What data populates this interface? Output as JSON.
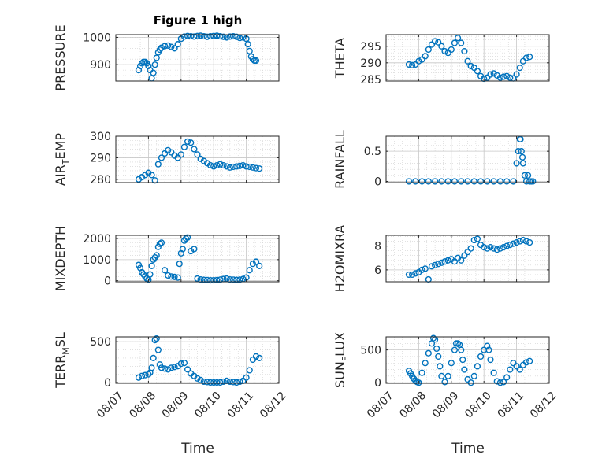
{
  "figure": {
    "title": "Figure 1 high",
    "x_tick_labels": [
      "08/07",
      "08/08",
      "08/09",
      "08/10",
      "08/11",
      "08/12"
    ],
    "xlabel": "Time",
    "marker_color": "#0072bd"
  },
  "chart_data": [
    {
      "type": "scatter",
      "ylabel": "PRESSURE",
      "ylabel_sub": "",
      "ylabel_pre": "PRESSURE",
      "ylabel_post": "",
      "ylim": [
        840,
        1010
      ],
      "yticks": [
        900,
        1000
      ],
      "ytick_labels": [
        "900",
        "1000"
      ],
      "xlim": [
        0,
        5
      ],
      "x": [
        0.7,
        0.75,
        0.8,
        0.85,
        0.9,
        0.95,
        1.0,
        1.05,
        1.1,
        1.15,
        1.2,
        1.25,
        1.3,
        1.35,
        1.4,
        1.5,
        1.6,
        1.7,
        1.8,
        1.9,
        2.0,
        2.1,
        2.2,
        2.3,
        2.4,
        2.5,
        2.6,
        2.7,
        2.8,
        2.9,
        3.0,
        3.1,
        3.2,
        3.3,
        3.4,
        3.5,
        3.6,
        3.7,
        3.8,
        3.9,
        4.0,
        4.05,
        4.1,
        4.15,
        4.2,
        4.25,
        4.3
      ],
      "y": [
        880,
        895,
        905,
        910,
        910,
        905,
        895,
        880,
        850,
        870,
        900,
        925,
        945,
        955,
        962,
        968,
        970,
        965,
        960,
        975,
        995,
        1003,
        1005,
        1004,
        1003,
        1005,
        1006,
        1004,
        1002,
        1004,
        1005,
        1006,
        1004,
        1002,
        1000,
        1003,
        1004,
        1002,
        998,
        1000,
        995,
        975,
        950,
        930,
        920,
        915,
        915
      ],
      "xticks": [
        0,
        1,
        2,
        3,
        4,
        5
      ]
    },
    {
      "type": "scatter",
      "ylabel": "THETA",
      "ylabel_sub": "",
      "ylabel_pre": "THETA",
      "ylabel_post": "",
      "ylim": [
        284.5,
        298.5
      ],
      "yticks": [
        285,
        290,
        295
      ],
      "ytick_labels": [
        "285",
        "290",
        "295"
      ],
      "xlim": [
        0,
        5
      ],
      "x": [
        0.7,
        0.8,
        0.9,
        1.0,
        1.1,
        1.2,
        1.3,
        1.4,
        1.5,
        1.6,
        1.7,
        1.8,
        1.9,
        2.0,
        2.1,
        2.2,
        2.3,
        2.4,
        2.5,
        2.6,
        2.7,
        2.8,
        2.9,
        3.0,
        3.1,
        3.2,
        3.3,
        3.4,
        3.5,
        3.6,
        3.7,
        3.8,
        3.9,
        4.0,
        4.1,
        4.2,
        4.3,
        4.4
      ],
      "y": [
        289.5,
        289.3,
        289.5,
        290.5,
        291,
        292,
        294,
        295.5,
        296.5,
        296.2,
        295,
        293.5,
        293,
        294,
        296,
        297.5,
        296,
        293.5,
        290.5,
        289,
        288.5,
        287.5,
        286,
        285.2,
        285.5,
        286.5,
        286.8,
        286.2,
        285.5,
        285.8,
        286,
        285.5,
        285.3,
        286.5,
        288.5,
        290.5,
        291.5,
        291.8
      ],
      "xticks": [
        0,
        1,
        2,
        3,
        4,
        5
      ]
    },
    {
      "type": "scatter",
      "ylabel": "AIR_TEMP",
      "ylabel_sub": "T",
      "ylabel_pre": "AIR",
      "ylabel_post": "EMP",
      "ylim": [
        278.5,
        300
      ],
      "yticks": [
        280,
        290,
        300
      ],
      "ytick_labels": [
        "280",
        "290",
        "300"
      ],
      "xlim": [
        0,
        5
      ],
      "x": [
        0.7,
        0.8,
        0.9,
        1.0,
        1.1,
        1.2,
        1.3,
        1.4,
        1.5,
        1.6,
        1.7,
        1.8,
        1.9,
        2.0,
        2.1,
        2.2,
        2.3,
        2.4,
        2.5,
        2.6,
        2.7,
        2.8,
        2.9,
        3.0,
        3.1,
        3.2,
        3.3,
        3.4,
        3.5,
        3.6,
        3.7,
        3.8,
        3.9,
        4.0,
        4.1,
        4.2,
        4.3,
        4.4
      ],
      "y": [
        280,
        281,
        282,
        283,
        282,
        279.5,
        287,
        290,
        292,
        293.5,
        292.5,
        291,
        290,
        291.5,
        295,
        297.5,
        297,
        294,
        291.5,
        289.5,
        288.5,
        287.5,
        286.5,
        286,
        286.5,
        287,
        286.5,
        286,
        285.5,
        285.8,
        286,
        286.2,
        286.5,
        286,
        285.8,
        285.5,
        285.2,
        285
      ],
      "xticks": [
        0,
        1,
        2,
        3,
        4,
        5
      ]
    },
    {
      "type": "scatter",
      "ylabel": "RAINFALL",
      "ylabel_sub": "",
      "ylabel_pre": "RAINFALL",
      "ylabel_post": "",
      "ylim": [
        -0.02,
        0.75
      ],
      "yticks": [
        0,
        0.5
      ],
      "ytick_labels": [
        "0",
        "0.5"
      ],
      "xlim": [
        0,
        5
      ],
      "x": [
        0.7,
        0.9,
        1.1,
        1.3,
        1.5,
        1.7,
        1.9,
        2.1,
        2.3,
        2.5,
        2.7,
        2.9,
        3.1,
        3.3,
        3.5,
        3.7,
        3.9,
        4.0,
        4.05,
        4.1,
        4.12,
        4.15,
        4.18,
        4.2,
        4.25,
        4.3,
        4.35,
        4.4,
        4.45,
        4.5
      ],
      "y": [
        0,
        0,
        0,
        0,
        0,
        0,
        0,
        0,
        0,
        0,
        0,
        0,
        0,
        0,
        0,
        0,
        0,
        0.3,
        0.5,
        0.7,
        0.7,
        0.5,
        0.4,
        0.3,
        0.1,
        0,
        0.1,
        0,
        0,
        0
      ],
      "xticks": [
        0,
        1,
        2,
        3,
        4,
        5
      ]
    },
    {
      "type": "scatter",
      "ylabel": "MIXDEPTH",
      "ylabel_sub": "",
      "ylabel_pre": "MIXDEPTH",
      "ylabel_post": "",
      "ylim": [
        -50,
        2150
      ],
      "yticks": [
        0,
        1000,
        2000
      ],
      "ytick_labels": [
        "0",
        "1000",
        "2000"
      ],
      "xlim": [
        0,
        5
      ],
      "x": [
        0.7,
        0.75,
        0.8,
        0.85,
        0.9,
        0.95,
        1.0,
        1.05,
        1.1,
        1.15,
        1.2,
        1.25,
        1.3,
        1.35,
        1.4,
        1.5,
        1.6,
        1.7,
        1.8,
        1.9,
        1.95,
        2.0,
        2.05,
        2.1,
        2.15,
        2.2,
        2.3,
        2.4,
        2.5,
        2.6,
        2.7,
        2.8,
        2.9,
        3.0,
        3.1,
        3.2,
        3.3,
        3.4,
        3.5,
        3.6,
        3.7,
        3.8,
        3.9,
        4.0,
        4.1,
        4.2,
        4.3,
        4.4
      ],
      "y": [
        750,
        600,
        400,
        300,
        200,
        100,
        50,
        300,
        700,
        1000,
        1100,
        1200,
        1600,
        1750,
        1800,
        500,
        250,
        200,
        180,
        150,
        800,
        1300,
        1500,
        1900,
        2000,
        2050,
        1400,
        1500,
        100,
        60,
        40,
        30,
        20,
        20,
        30,
        50,
        80,
        100,
        60,
        50,
        40,
        50,
        80,
        150,
        500,
        800,
        900,
        700
      ],
      "xticks": [
        0,
        1,
        2,
        3,
        4,
        5
      ]
    },
    {
      "type": "scatter",
      "ylabel": "H2OMIXRA",
      "ylabel_sub": "",
      "ylabel_pre": "H2OMIXRA",
      "ylabel_post": "",
      "ylim": [
        5,
        8.9
      ],
      "yticks": [
        6,
        8
      ],
      "ytick_labels": [
        "6",
        "8"
      ],
      "xlim": [
        0,
        5
      ],
      "x": [
        0.7,
        0.8,
        0.9,
        1.0,
        1.1,
        1.2,
        1.3,
        1.4,
        1.5,
        1.6,
        1.7,
        1.8,
        1.9,
        2.0,
        2.1,
        2.2,
        2.3,
        2.4,
        2.5,
        2.6,
        2.7,
        2.8,
        2.9,
        3.0,
        3.1,
        3.2,
        3.3,
        3.4,
        3.5,
        3.6,
        3.7,
        3.8,
        3.9,
        4.0,
        4.1,
        4.2,
        4.3,
        4.4
      ],
      "y": [
        5.6,
        5.6,
        5.7,
        5.8,
        6.0,
        6.1,
        5.2,
        6.3,
        6.4,
        6.5,
        6.6,
        6.7,
        6.8,
        6.9,
        6.7,
        7.0,
        6.8,
        7.2,
        7.5,
        7.8,
        8.5,
        8.6,
        8.1,
        7.9,
        7.8,
        7.9,
        7.8,
        7.7,
        7.8,
        7.9,
        8.0,
        8.1,
        8.2,
        8.3,
        8.4,
        8.5,
        8.4,
        8.3
      ],
      "xticks": [
        0,
        1,
        2,
        3,
        4,
        5
      ]
    },
    {
      "type": "scatter",
      "ylabel": "TERR_MSL",
      "ylabel_sub": "M",
      "ylabel_pre": "TERR",
      "ylabel_post": "SL",
      "ylim": [
        -10,
        560
      ],
      "yticks": [
        0,
        500
      ],
      "ytick_labels": [
        "0",
        "500"
      ],
      "xlim": [
        0,
        5
      ],
      "x": [
        0.7,
        0.8,
        0.9,
        1.0,
        1.05,
        1.1,
        1.15,
        1.2,
        1.25,
        1.3,
        1.35,
        1.4,
        1.5,
        1.6,
        1.7,
        1.8,
        1.9,
        2.0,
        2.1,
        2.2,
        2.3,
        2.4,
        2.5,
        2.6,
        2.7,
        2.8,
        2.9,
        3.0,
        3.1,
        3.2,
        3.3,
        3.4,
        3.5,
        3.6,
        3.7,
        3.8,
        3.9,
        4.0,
        4.1,
        4.2,
        4.3,
        4.4
      ],
      "y": [
        60,
        80,
        90,
        100,
        120,
        180,
        300,
        520,
        540,
        400,
        220,
        180,
        170,
        160,
        180,
        190,
        200,
        230,
        240,
        160,
        110,
        80,
        50,
        30,
        10,
        5,
        0,
        0,
        0,
        0,
        10,
        20,
        10,
        5,
        0,
        10,
        20,
        60,
        150,
        280,
        320,
        300
      ],
      "xticks": [
        0,
        1,
        2,
        3,
        4,
        5
      ]
    },
    {
      "type": "scatter",
      "ylabel": "SUN_FLUX",
      "ylabel_sub": "F",
      "ylabel_pre": "SUN",
      "ylabel_post": "LUX",
      "ylim": [
        -10,
        700
      ],
      "yticks": [
        0,
        500
      ],
      "ytick_labels": [
        "0",
        "500"
      ],
      "xlim": [
        0,
        5
      ],
      "x": [
        0.7,
        0.75,
        0.8,
        0.85,
        0.9,
        0.95,
        1.0,
        1.1,
        1.2,
        1.3,
        1.4,
        1.45,
        1.5,
        1.55,
        1.6,
        1.65,
        1.7,
        1.8,
        1.9,
        2.0,
        2.1,
        2.15,
        2.2,
        2.25,
        2.3,
        2.35,
        2.4,
        2.5,
        2.6,
        2.7,
        2.8,
        2.9,
        3.0,
        3.1,
        3.15,
        3.2,
        3.3,
        3.4,
        3.5,
        3.6,
        3.7,
        3.8,
        3.9,
        4.0,
        4.1,
        4.2,
        4.3,
        4.4
      ],
      "y": [
        180,
        140,
        100,
        60,
        30,
        10,
        0,
        150,
        300,
        450,
        600,
        680,
        660,
        520,
        400,
        250,
        100,
        10,
        100,
        300,
        500,
        600,
        600,
        580,
        500,
        350,
        200,
        50,
        0,
        100,
        250,
        400,
        500,
        560,
        500,
        350,
        150,
        20,
        0,
        10,
        80,
        200,
        300,
        250,
        200,
        270,
        310,
        330
      ],
      "xticks": [
        0,
        1,
        2,
        3,
        4,
        5
      ]
    }
  ]
}
